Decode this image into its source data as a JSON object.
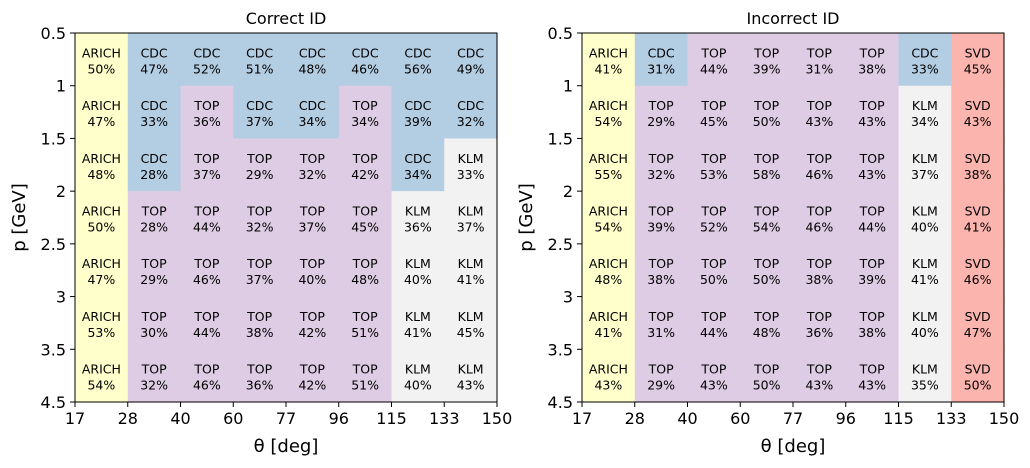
{
  "colors": {
    "ARICH": "#ffffcc",
    "CDC": "#b3cde3",
    "TOP": "#decbe4",
    "KLM": "#f2f2f2",
    "SVD": "#fbb4ae"
  },
  "chart_data": [
    {
      "type": "heatmap",
      "title": "Correct ID",
      "xlabel": "θ [deg]",
      "ylabel": "p [GeV]",
      "x_edges": [
        "17",
        "28",
        "40",
        "60",
        "77",
        "96",
        "115",
        "133",
        "150"
      ],
      "y_edges": [
        "0.5",
        "1",
        "1.5",
        "2",
        "2.5",
        "3",
        "3.5",
        "4.5"
      ],
      "cells": [
        [
          [
            "ARICH",
            "50%"
          ],
          [
            "CDC",
            "47%"
          ],
          [
            "CDC",
            "52%"
          ],
          [
            "CDC",
            "51%"
          ],
          [
            "CDC",
            "48%"
          ],
          [
            "CDC",
            "46%"
          ],
          [
            "CDC",
            "56%"
          ],
          [
            "CDC",
            "49%"
          ]
        ],
        [
          [
            "ARICH",
            "47%"
          ],
          [
            "CDC",
            "33%"
          ],
          [
            "TOP",
            "36%"
          ],
          [
            "CDC",
            "37%"
          ],
          [
            "CDC",
            "34%"
          ],
          [
            "TOP",
            "34%"
          ],
          [
            "CDC",
            "39%"
          ],
          [
            "CDC",
            "32%"
          ]
        ],
        [
          [
            "ARICH",
            "48%"
          ],
          [
            "CDC",
            "28%"
          ],
          [
            "TOP",
            "37%"
          ],
          [
            "TOP",
            "29%"
          ],
          [
            "TOP",
            "32%"
          ],
          [
            "TOP",
            "42%"
          ],
          [
            "CDC",
            "34%"
          ],
          [
            "KLM",
            "33%"
          ]
        ],
        [
          [
            "ARICH",
            "50%"
          ],
          [
            "TOP",
            "28%"
          ],
          [
            "TOP",
            "44%"
          ],
          [
            "TOP",
            "32%"
          ],
          [
            "TOP",
            "37%"
          ],
          [
            "TOP",
            "45%"
          ],
          [
            "KLM",
            "36%"
          ],
          [
            "KLM",
            "37%"
          ]
        ],
        [
          [
            "ARICH",
            "47%"
          ],
          [
            "TOP",
            "29%"
          ],
          [
            "TOP",
            "46%"
          ],
          [
            "TOP",
            "37%"
          ],
          [
            "TOP",
            "40%"
          ],
          [
            "TOP",
            "48%"
          ],
          [
            "KLM",
            "40%"
          ],
          [
            "KLM",
            "41%"
          ]
        ],
        [
          [
            "ARICH",
            "53%"
          ],
          [
            "TOP",
            "30%"
          ],
          [
            "TOP",
            "44%"
          ],
          [
            "TOP",
            "38%"
          ],
          [
            "TOP",
            "42%"
          ],
          [
            "TOP",
            "51%"
          ],
          [
            "KLM",
            "41%"
          ],
          [
            "KLM",
            "45%"
          ]
        ],
        [
          [
            "ARICH",
            "54%"
          ],
          [
            "TOP",
            "32%"
          ],
          [
            "TOP",
            "46%"
          ],
          [
            "TOP",
            "36%"
          ],
          [
            "TOP",
            "42%"
          ],
          [
            "TOP",
            "51%"
          ],
          [
            "KLM",
            "40%"
          ],
          [
            "KLM",
            "43%"
          ]
        ]
      ]
    },
    {
      "type": "heatmap",
      "title": "Incorrect ID",
      "xlabel": "θ [deg]",
      "ylabel": "p [GeV]",
      "x_edges": [
        "17",
        "28",
        "40",
        "60",
        "77",
        "96",
        "115",
        "133",
        "150"
      ],
      "y_edges": [
        "0.5",
        "1",
        "1.5",
        "2",
        "2.5",
        "3",
        "3.5",
        "4.5"
      ],
      "cells": [
        [
          [
            "ARICH",
            "41%"
          ],
          [
            "CDC",
            "31%"
          ],
          [
            "TOP",
            "44%"
          ],
          [
            "TOP",
            "39%"
          ],
          [
            "TOP",
            "31%"
          ],
          [
            "TOP",
            "38%"
          ],
          [
            "CDC",
            "33%"
          ],
          [
            "SVD",
            "45%"
          ]
        ],
        [
          [
            "ARICH",
            "54%"
          ],
          [
            "TOP",
            "29%"
          ],
          [
            "TOP",
            "45%"
          ],
          [
            "TOP",
            "50%"
          ],
          [
            "TOP",
            "43%"
          ],
          [
            "TOP",
            "43%"
          ],
          [
            "KLM",
            "34%"
          ],
          [
            "SVD",
            "43%"
          ]
        ],
        [
          [
            "ARICH",
            "55%"
          ],
          [
            "TOP",
            "32%"
          ],
          [
            "TOP",
            "53%"
          ],
          [
            "TOP",
            "58%"
          ],
          [
            "TOP",
            "46%"
          ],
          [
            "TOP",
            "43%"
          ],
          [
            "KLM",
            "37%"
          ],
          [
            "SVD",
            "38%"
          ]
        ],
        [
          [
            "ARICH",
            "54%"
          ],
          [
            "TOP",
            "39%"
          ],
          [
            "TOP",
            "52%"
          ],
          [
            "TOP",
            "54%"
          ],
          [
            "TOP",
            "46%"
          ],
          [
            "TOP",
            "44%"
          ],
          [
            "KLM",
            "40%"
          ],
          [
            "SVD",
            "41%"
          ]
        ],
        [
          [
            "ARICH",
            "48%"
          ],
          [
            "TOP",
            "38%"
          ],
          [
            "TOP",
            "50%"
          ],
          [
            "TOP",
            "50%"
          ],
          [
            "TOP",
            "38%"
          ],
          [
            "TOP",
            "39%"
          ],
          [
            "KLM",
            "41%"
          ],
          [
            "SVD",
            "46%"
          ]
        ],
        [
          [
            "ARICH",
            "41%"
          ],
          [
            "TOP",
            "31%"
          ],
          [
            "TOP",
            "44%"
          ],
          [
            "TOP",
            "48%"
          ],
          [
            "TOP",
            "36%"
          ],
          [
            "TOP",
            "38%"
          ],
          [
            "KLM",
            "40%"
          ],
          [
            "SVD",
            "47%"
          ]
        ],
        [
          [
            "ARICH",
            "43%"
          ],
          [
            "TOP",
            "29%"
          ],
          [
            "TOP",
            "43%"
          ],
          [
            "TOP",
            "50%"
          ],
          [
            "TOP",
            "43%"
          ],
          [
            "TOP",
            "43%"
          ],
          [
            "KLM",
            "35%"
          ],
          [
            "SVD",
            "50%"
          ]
        ]
      ]
    }
  ]
}
